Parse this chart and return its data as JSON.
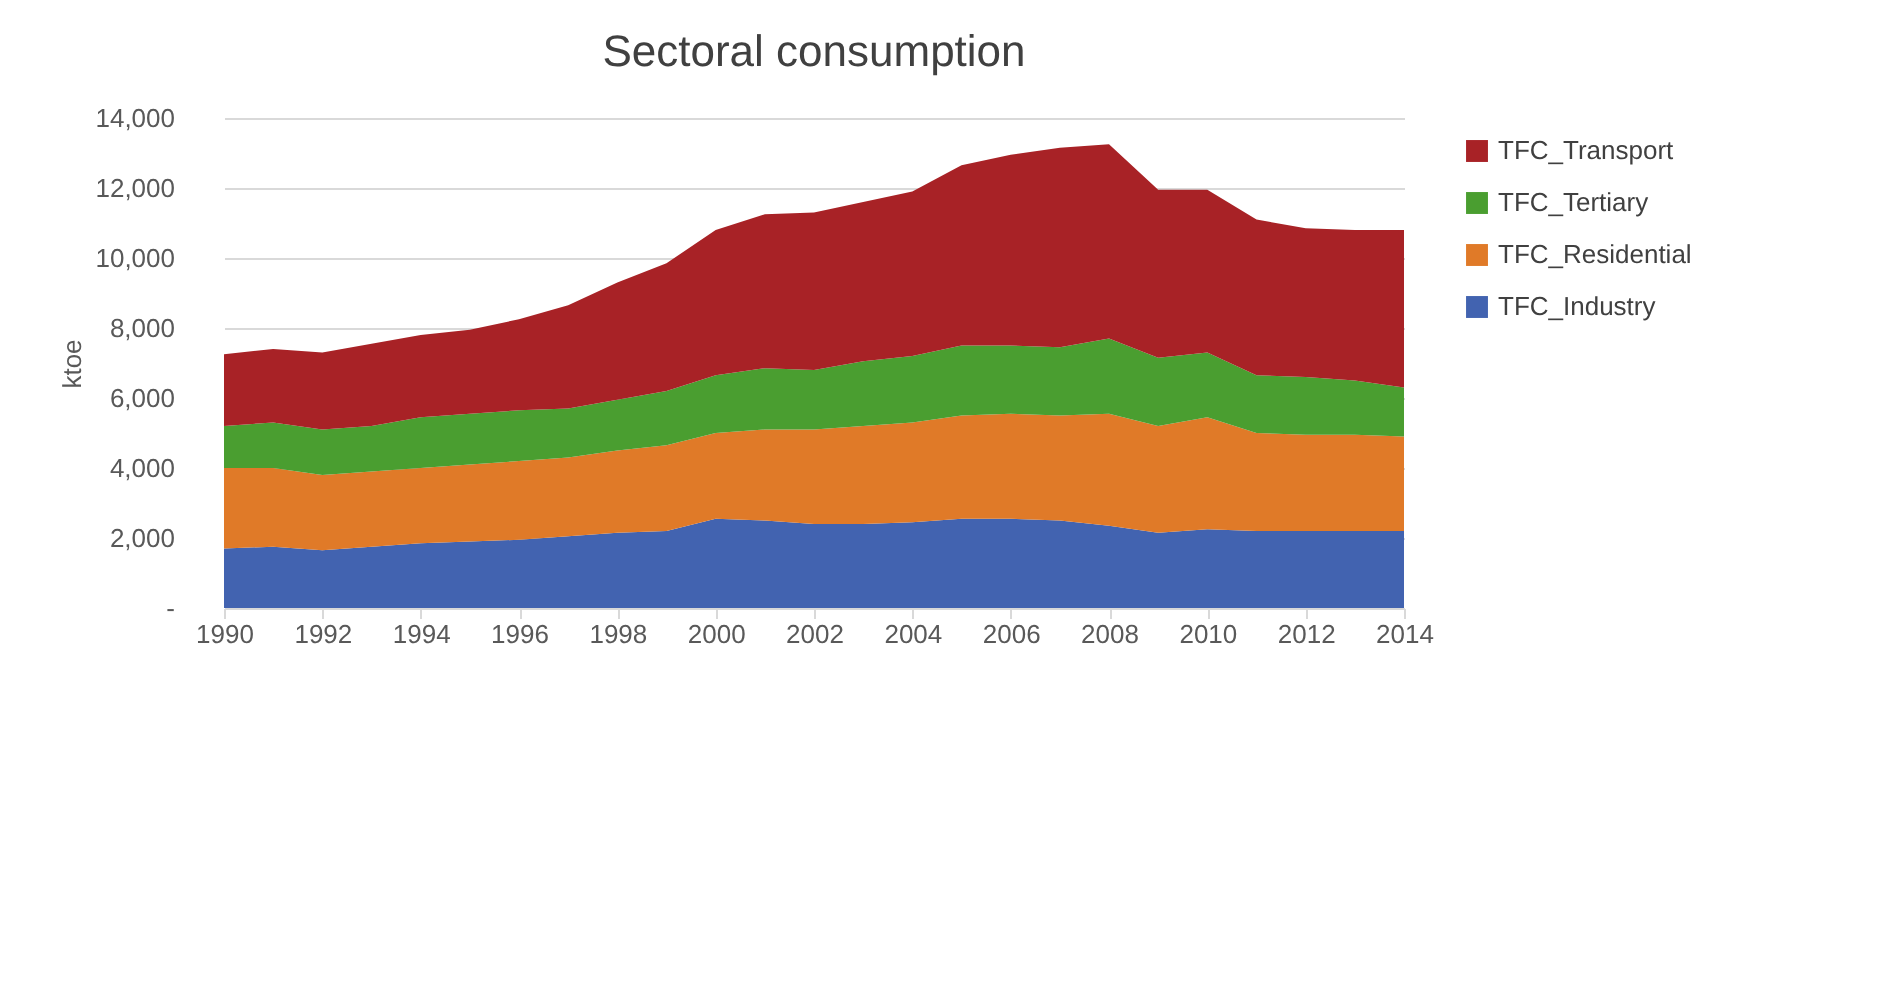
{
  "chart_data": {
    "type": "area",
    "stacked": true,
    "title": "Sectoral consumption",
    "ylabel": "ktoe",
    "x": [
      1990,
      1991,
      1992,
      1993,
      1994,
      1995,
      1996,
      1997,
      1998,
      1999,
      2000,
      2001,
      2002,
      2003,
      2004,
      2005,
      2006,
      2007,
      2008,
      2009,
      2010,
      2011,
      2012,
      2013,
      2014
    ],
    "series": [
      {
        "name": "TFC_Industry",
        "color": "#4263b0",
        "values": [
          1700,
          1750,
          1650,
          1750,
          1850,
          1900,
          1950,
          2050,
          2150,
          2200,
          2550,
          2500,
          2400,
          2400,
          2450,
          2550,
          2550,
          2500,
          2350,
          2150,
          2250,
          2200,
          2200,
          2200,
          2200
        ]
      },
      {
        "name": "TFC_Residential",
        "color": "#e07a28",
        "values": [
          2300,
          2250,
          2150,
          2150,
          2150,
          2200,
          2250,
          2250,
          2350,
          2450,
          2450,
          2600,
          2700,
          2800,
          2850,
          2950,
          3000,
          3000,
          3200,
          3050,
          3200,
          2800,
          2750,
          2750,
          2700
        ]
      },
      {
        "name": "TFC_Tertiary",
        "color": "#4a9e30",
        "values": [
          1200,
          1300,
          1300,
          1300,
          1450,
          1450,
          1450,
          1400,
          1450,
          1550,
          1650,
          1750,
          1700,
          1850,
          1900,
          2000,
          1950,
          1950,
          2150,
          1950,
          1850,
          1650,
          1650,
          1550,
          1400
        ]
      },
      {
        "name": "TFC_Transport",
        "color": "#a82226",
        "values": [
          2050,
          2100,
          2200,
          2350,
          2350,
          2400,
          2600,
          2950,
          3350,
          3650,
          4150,
          4400,
          4500,
          4550,
          4700,
          5150,
          5450,
          5700,
          5550,
          4800,
          4650,
          4450,
          4250,
          4300,
          4500
        ]
      }
    ],
    "xlim": [
      1990,
      2014
    ],
    "xticks": [
      1990,
      1992,
      1994,
      1996,
      1998,
      2000,
      2002,
      2004,
      2006,
      2008,
      2010,
      2012,
      2014
    ],
    "ylim": [
      0,
      14000
    ],
    "yticks": [
      {
        "value": 0,
        "label": "-"
      },
      {
        "value": 2000,
        "label": "2,000"
      },
      {
        "value": 4000,
        "label": "4,000"
      },
      {
        "value": 6000,
        "label": "6,000"
      },
      {
        "value": 8000,
        "label": "8,000"
      },
      {
        "value": 10000,
        "label": "10,000"
      },
      {
        "value": 12000,
        "label": "12,000"
      },
      {
        "value": 14000,
        "label": "14,000"
      }
    ],
    "grid": "y",
    "legend": "right"
  }
}
